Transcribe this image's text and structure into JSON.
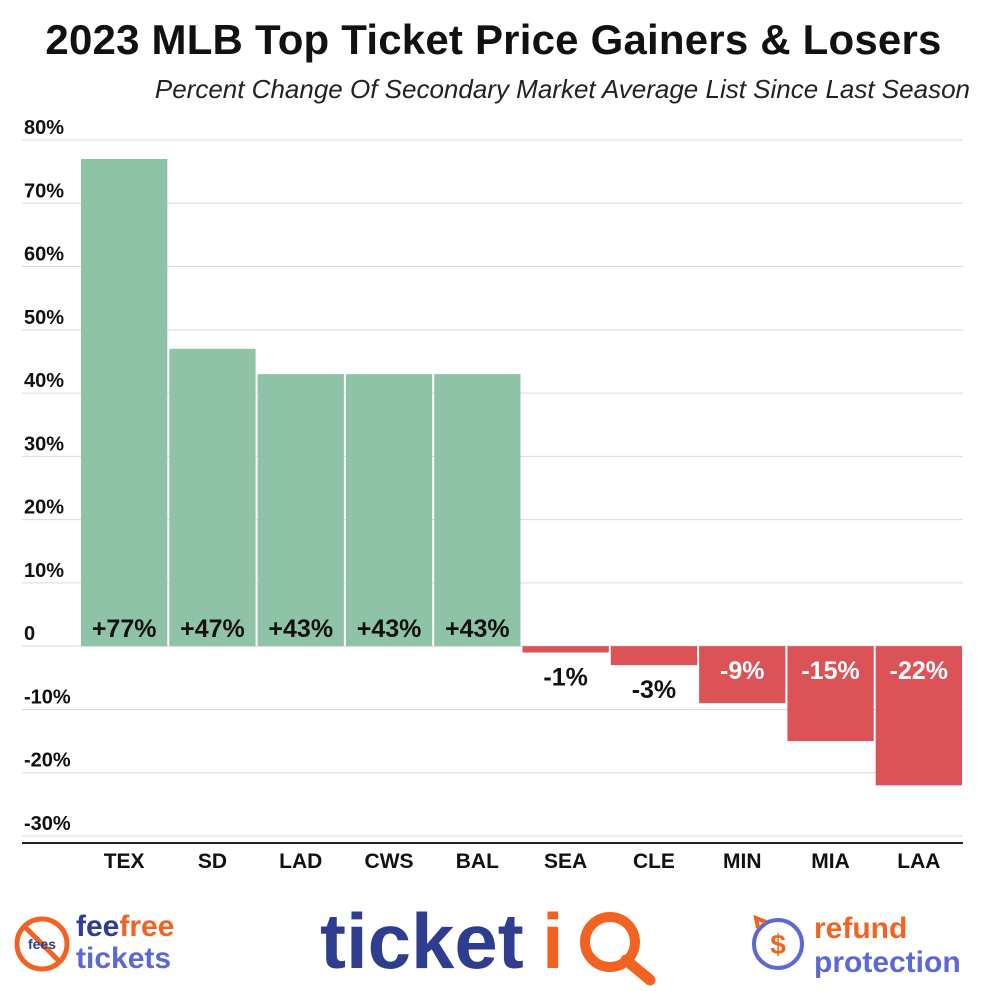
{
  "title": "2023 MLB Top Ticket Price Gainers & Losers",
  "subtitle": "Percent Change Of Secondary Market Average List Since Last Season",
  "colors": {
    "gain": "#8fc3a8",
    "loss": "#db5257",
    "grid": "#d9d9d9",
    "axis": "#222222"
  },
  "chart_data": {
    "type": "bar",
    "categories": [
      "TEX",
      "SD",
      "LAD",
      "CWS",
      "BAL",
      "SEA",
      "CLE",
      "MIN",
      "MIA",
      "LAA"
    ],
    "values": [
      77,
      47,
      43,
      43,
      43,
      -1,
      -3,
      -9,
      -15,
      -22
    ],
    "data_labels": [
      "+77%",
      "+47%",
      "+43%",
      "+43%",
      "+43%",
      "-1%",
      "-3%",
      "-9%",
      "-15%",
      "-22%"
    ],
    "ylim": [
      -30,
      80
    ],
    "yticks": [
      80,
      70,
      60,
      50,
      40,
      30,
      20,
      10,
      0,
      -10,
      -20,
      -30
    ],
    "ytick_labels": [
      "80%",
      "70%",
      "60%",
      "50%",
      "40%",
      "30%",
      "20%",
      "10%",
      "0",
      "-10%",
      "-20%",
      "-30%"
    ],
    "grid": true,
    "legend": "none"
  },
  "footer": {
    "left_logo": {
      "line1a": "fee",
      "line1b": "free",
      "line2": "tickets",
      "badge": "fees",
      "icon": "no-fees-icon"
    },
    "center_logo": {
      "text_main": "ticket",
      "text_i": "i",
      "text_q": "Q",
      "icon": "magnifier-icon"
    },
    "right_logo": {
      "line1": "refund",
      "line2": "protection",
      "icon": "refund-dollar-icon"
    }
  }
}
